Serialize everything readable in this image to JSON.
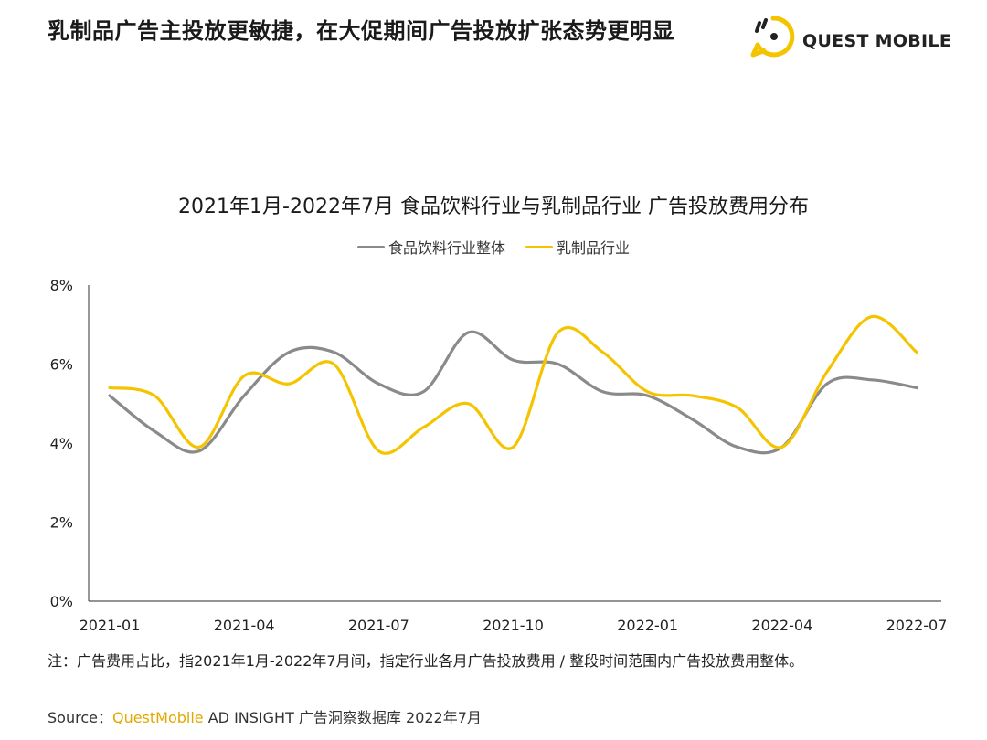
{
  "header": {
    "title": "乳制品广告主投放更敏捷，在大促期间广告投放扩张态势更明显",
    "logo_text": "QUEST MOBILE"
  },
  "colors": {
    "series_food": "#8a8a8a",
    "series_dairy": "#f5c400",
    "axis": "#555555"
  },
  "chart_data": {
    "type": "line",
    "title": "2021年1月-2022年7月 食品饮料行业与乳制品行业 广告投放费用分布",
    "x": [
      "2021-01",
      "2021-02",
      "2021-03",
      "2021-04",
      "2021-05",
      "2021-06",
      "2021-07",
      "2021-08",
      "2021-09",
      "2021-10",
      "2021-11",
      "2021-12",
      "2022-01",
      "2022-02",
      "2022-03",
      "2022-04",
      "2022-05",
      "2022-06",
      "2022-07"
    ],
    "x_tick_labels": [
      "2021-01",
      "2021-04",
      "2021-07",
      "2021-10",
      "2022-01",
      "2022-04",
      "2022-07"
    ],
    "y_tick_labels": [
      "0%",
      "2%",
      "4%",
      "6%",
      "8%"
    ],
    "ylim": [
      0,
      8
    ],
    "y_unit": "%",
    "legend_position": "top-center",
    "series": [
      {
        "name": "食品饮料行业整体",
        "color_key": "series_food",
        "values": [
          5.2,
          4.3,
          3.8,
          5.2,
          6.3,
          6.3,
          5.5,
          5.3,
          6.8,
          6.1,
          6.0,
          5.3,
          5.2,
          4.6,
          3.9,
          3.9,
          5.5,
          5.6,
          5.4
        ]
      },
      {
        "name": "乳制品行业",
        "color_key": "series_dairy",
        "values": [
          5.4,
          5.2,
          3.9,
          5.7,
          5.5,
          6.0,
          3.8,
          4.4,
          5.0,
          3.9,
          6.8,
          6.3,
          5.3,
          5.2,
          4.9,
          3.9,
          5.8,
          7.2,
          6.3
        ]
      }
    ]
  },
  "footer": {
    "note": "注：广告费用占比，指2021年1月-2022年7月间，指定行业各月广告投放费用 / 整段时间范围内广告投放费用整体。",
    "source_prefix": "Source：",
    "source_brand": "QuestMobile",
    "source_suffix": " AD INSIGHT 广告洞察数据库 2022年7月"
  }
}
